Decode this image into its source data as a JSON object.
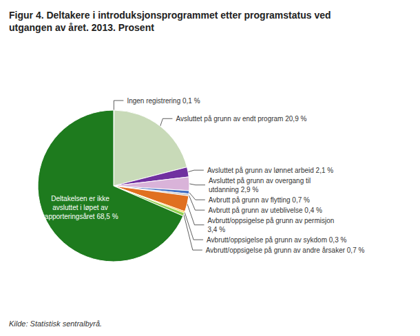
{
  "chart_data": {
    "type": "pie",
    "title": "Figur 4. Deltakere i introduksjonsprogrammet etter programstatus ved\nutgangen av året. 2013. Prosent",
    "annotations": [
      "Kilde: Statistisk sentralbyrå."
    ],
    "categories": [
      "Ingen registrering 0,1 %",
      "Avsluttet på grunn av endt program 20,9 %",
      "Avsluttet på grunn av lønnet arbeid 2,1 %",
      "Avsluttet på grunn av overgang til\nutdanning 2,9 %",
      "Avbrutt på grunn av flytting 0,7 %",
      "Avbrutt på grunn av uteblivelse 0,4 %",
      "Avbrutt/oppsigelse på grunn av permisjon\n3,4 %",
      "Avbrutt/oppsigelse på grunn av sykdom 0,3 %",
      "Avbrutt/oppsigelse på grunn av andre årsaker 0,7 %",
      "Deltakelsen er ikke\navsluttet i løpet av\nrapporteringsåret 68,5 %"
    ],
    "values": [
      0.1,
      20.9,
      2.1,
      2.9,
      0.7,
      0.4,
      3.4,
      0.3,
      0.7,
      68.5
    ],
    "colors": [
      "#c8dab8",
      "#c8dab8",
      "#7030a0",
      "#d9b3d9",
      "#4472c4",
      "#bfbfbf",
      "#e07020",
      "#ffc000",
      "#92d050",
      "#1e7b1e"
    ]
  }
}
